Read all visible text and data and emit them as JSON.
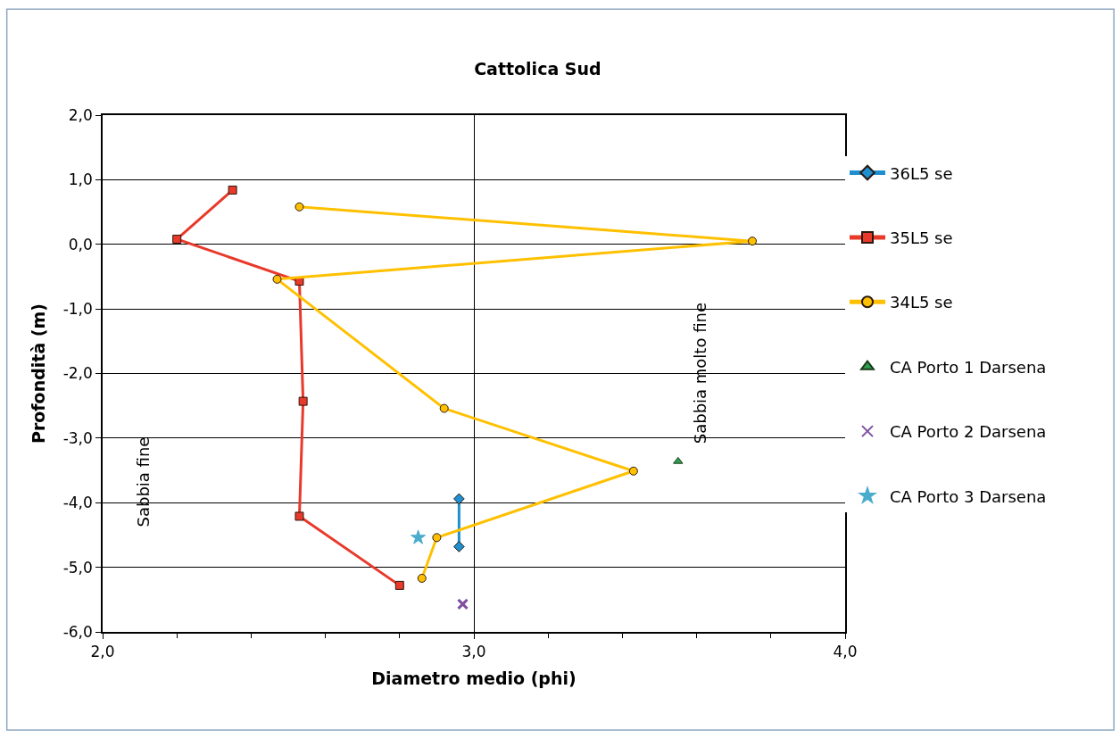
{
  "chart_data": {
    "type": "line",
    "title": "Cattolica Sud",
    "xlabel": "Diametro medio (phi)",
    "ylabel": "Profondità (m)",
    "xlim": [
      2.0,
      4.0
    ],
    "ylim": [
      -6.0,
      2.0
    ],
    "xticks": [
      {
        "value": 2.0,
        "label": "2,0"
      },
      {
        "value": 2.2,
        "label": null
      },
      {
        "value": 2.4,
        "label": null
      },
      {
        "value": 2.6,
        "label": null
      },
      {
        "value": 2.8,
        "label": null
      },
      {
        "value": 3.0,
        "label": "3,0"
      },
      {
        "value": 3.2,
        "label": null
      },
      {
        "value": 3.4,
        "label": null
      },
      {
        "value": 3.6,
        "label": null
      },
      {
        "value": 3.8,
        "label": null
      },
      {
        "value": 4.0,
        "label": "4,0"
      }
    ],
    "yticks": [
      {
        "value": -6,
        "label": "-6,0"
      },
      {
        "value": -5,
        "label": "-5,0"
      },
      {
        "value": -4,
        "label": "-4,0"
      },
      {
        "value": -3,
        "label": "-3,0"
      },
      {
        "value": -2,
        "label": "-2,0"
      },
      {
        "value": -1,
        "label": "-1,0"
      },
      {
        "value": 0,
        "label": "0,0"
      },
      {
        "value": 1,
        "label": "1,0"
      },
      {
        "value": 2,
        "label": "2,0"
      }
    ],
    "grid": true,
    "legend": "right",
    "annotations": [
      "Sabbia fine",
      "Sabbia molto fine"
    ],
    "series": [
      {
        "name": "36L5 se",
        "marker": "diamond",
        "color": "#1f8fd0",
        "x": [
          2.96,
          2.96
        ],
        "values": [
          -3.94,
          -4.68
        ]
      },
      {
        "name": "35L5 se",
        "marker": "square",
        "color": "#e8392a",
        "x": [
          2.35,
          2.2,
          2.53,
          2.54,
          2.53,
          2.8
        ],
        "values": [
          0.84,
          0.08,
          -0.57,
          -2.43,
          -4.21,
          -5.28
        ]
      },
      {
        "name": "34L5 se",
        "marker": "circle",
        "color": "#ffc000",
        "x": [
          2.53,
          3.75,
          2.47,
          2.92,
          3.43,
          2.9,
          2.86
        ],
        "values": [
          0.58,
          0.05,
          -0.54,
          -2.54,
          -3.51,
          -4.54,
          -5.17
        ]
      },
      {
        "name": "CA Porto 1 Darsena",
        "type": "scatter",
        "marker": "triangle",
        "color": "#2e9e4f",
        "x": [
          3.55
        ],
        "values": [
          -3.36
        ]
      },
      {
        "name": "CA Porto 2 Darsena",
        "type": "scatter",
        "marker": "cross",
        "color": "#7f4fa0",
        "x": [
          2.97
        ],
        "values": [
          -5.57
        ]
      },
      {
        "name": "CA Porto 3 Darsena",
        "type": "scatter",
        "marker": "star",
        "color": "#4aaccc",
        "x": [
          2.85
        ],
        "values": [
          -4.54
        ]
      }
    ]
  }
}
